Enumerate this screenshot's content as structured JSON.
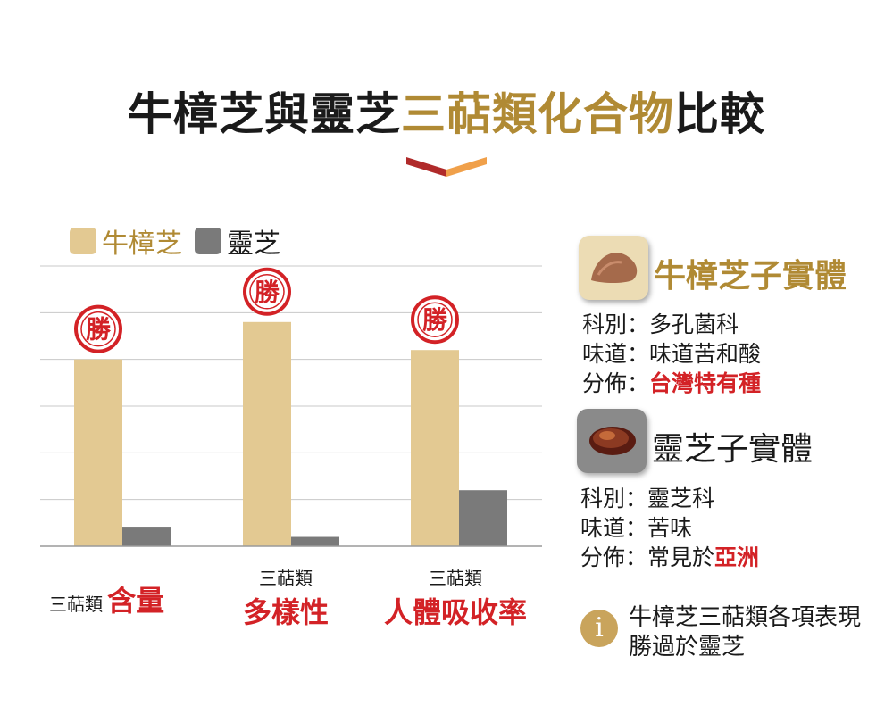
{
  "title": {
    "prefix": "牛樟芝與靈芝",
    "highlight": "三萜類化合物",
    "suffix": "比較"
  },
  "colors": {
    "niuzhang": "#e3c992",
    "lingzhi": "#7a7a7a",
    "accent_gold": "#b08a34",
    "accent_red": "#d32226",
    "chevron_dark": "#b02a2a",
    "chevron_light": "#f0a04a"
  },
  "win_badge": "勝",
  "chart_data": {
    "type": "bar",
    "categories": [
      "三萜類 含量",
      "三萜類 多樣性",
      "三萜類 人體吸收率"
    ],
    "series": [
      {
        "name": "牛樟芝",
        "values": [
          40,
          48,
          42
        ]
      },
      {
        "name": "靈芝",
        "values": [
          4,
          2,
          12
        ]
      }
    ],
    "ylim": [
      0,
      60
    ],
    "grid": true,
    "legend": "top-left",
    "winner": [
      "牛樟芝",
      "牛樟芝",
      "牛樟芝"
    ]
  },
  "category_labels": [
    {
      "small": "三萜類",
      "big": "含量"
    },
    {
      "small": "三萜類",
      "big": "多樣性"
    },
    {
      "small": "三萜類",
      "big": "人體吸收率"
    }
  ],
  "cards": [
    {
      "title": "牛樟芝子實體",
      "icon": "niuzhang-mushroom-icon",
      "rows": [
        {
          "key": "科別：",
          "value": "多孔菌科",
          "red": false
        },
        {
          "key": "味道：",
          "value": "味道苦和酸",
          "red": false
        },
        {
          "key": "分佈：",
          "value": "台灣特有種",
          "red": true
        }
      ]
    },
    {
      "title": "靈芝子實體",
      "icon": "lingzhi-mushroom-icon",
      "rows": [
        {
          "key": "科別：",
          "value": "靈芝科",
          "red": false
        },
        {
          "key": "味道：",
          "value": "苦味",
          "red": false
        },
        {
          "key": "分佈：",
          "value": "常見於",
          "value_red": "亞洲"
        }
      ]
    }
  ],
  "note": {
    "icon": "info-icon",
    "symbol": "i",
    "line1": "牛樟芝三萜類各項表現",
    "line2": "勝過於靈芝"
  }
}
